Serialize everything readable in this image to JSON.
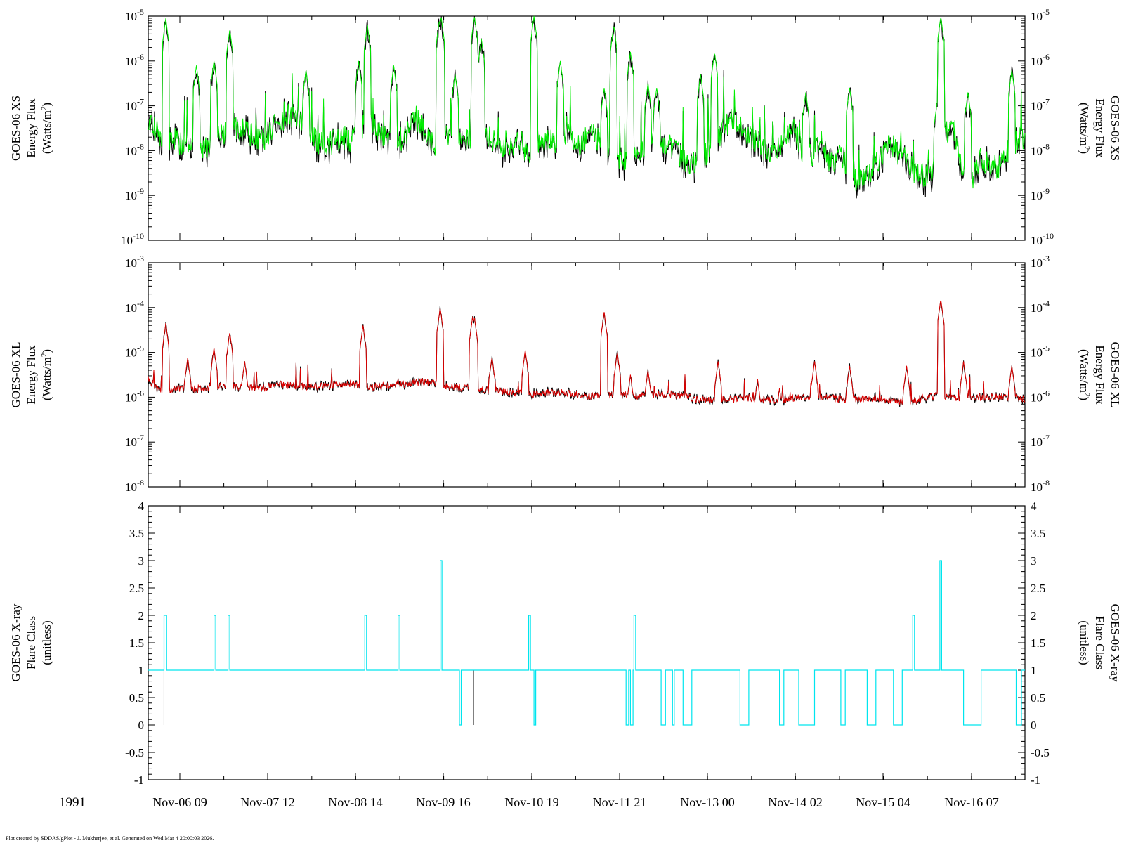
{
  "footer_text": "Plot created by SDDAS/gPlot - J. Mukherjee, et al.  Generated on Wed Mar 4 20:00:03 2026.",
  "year_label": "1991",
  "colors": {
    "xs_primary": "#00ee00",
    "xs_secondary": "#000000",
    "xl_primary": "#dd0000",
    "xl_secondary": "#000000",
    "flare_primary": "#00e5ee",
    "flare_secondary": "#000000"
  },
  "chart_data": [
    {
      "type": "line",
      "panel": "top",
      "ylabel_left": [
        "GOES-06 XS",
        "Energy Flux",
        "(Watts/m2)"
      ],
      "ylabel_right": [
        "GOES-06 XS",
        "Energy Flux",
        "(Watts/m2)"
      ],
      "yscale": "log",
      "ylim": [
        1e-10,
        1e-05
      ],
      "ytick_exponents": [
        -5,
        -6,
        -7,
        -8,
        -9,
        -10
      ],
      "x_range_days": "Nov-05 ~19:30 to Nov-16 ~18:00",
      "series": [
        {
          "color": "#00ee00",
          "baseline_log10": [
            -7.3,
            -7.6,
            -7.8,
            -7.7,
            -7.9,
            -7.8,
            -7.9,
            -7.9,
            -7.7,
            -7.6,
            -7.5,
            -7.6,
            -7.7,
            -7.8,
            -7.5,
            -7.3,
            -7.2,
            -7.3,
            -7.6,
            -7.8,
            -7.9,
            -7.8,
            -7.7,
            -7.8,
            -7.5,
            -7.3,
            -7.6,
            -7.8,
            -7.8,
            -7.7,
            -7.2,
            -7.5,
            -7.8,
            -7.9,
            -7.6,
            -7.7,
            -7.8,
            -7.8,
            -7.5,
            -7.9,
            -7.9,
            -8.0,
            -7.8,
            -8.1,
            -7.9,
            -7.8,
            -7.8,
            -7.6,
            -7.8,
            -7.9,
            -7.6,
            -7.8,
            -8.1,
            -8.3,
            -8.2,
            -8.1,
            -8.0,
            -7.7,
            -7.8,
            -7.9,
            -8.1,
            -8.3,
            -8.2,
            -8.1,
            -8.0,
            -7.5,
            -7.3,
            -7.4,
            -7.7,
            -7.9,
            -8.1,
            -8.0,
            -7.8,
            -7.5,
            -8.1,
            -8.1,
            -7.8,
            -8.3,
            -8.1,
            -8.3,
            -8.7,
            -8.6,
            -8.4,
            -8.0,
            -7.9,
            -8.1,
            -8.3,
            -8.6,
            -8.5,
            -8.3,
            -7.6,
            -7.5,
            -8.5,
            -8.7,
            -8.2,
            -8.3,
            -8.4,
            -8.1,
            -7.8,
            -7.7
          ]
        },
        {
          "color": "#000000",
          "note": "underlying trace"
        }
      ],
      "peaks_log10": [
        [
          0.02,
          -5.05
        ],
        [
          0.055,
          -6.1
        ],
        [
          0.075,
          -6.0
        ],
        [
          0.093,
          -5.3
        ],
        [
          0.18,
          -6.2
        ],
        [
          0.24,
          -6.0
        ],
        [
          0.25,
          -5.2
        ],
        [
          0.28,
          -6.1
        ],
        [
          0.332,
          -5.1
        ],
        [
          0.334,
          -5.0
        ],
        [
          0.372,
          -5.0
        ],
        [
          0.35,
          -6.3
        ],
        [
          0.38,
          -5.5
        ],
        [
          0.44,
          -5.0
        ],
        [
          0.47,
          -6.0
        ],
        [
          0.52,
          -6.7
        ],
        [
          0.52,
          -6.6
        ],
        [
          0.531,
          -5.2
        ],
        [
          0.53,
          -6.3
        ],
        [
          0.55,
          -5.8
        ],
        [
          0.57,
          -6.5
        ],
        [
          0.58,
          -6.6
        ],
        [
          0.63,
          -6.3
        ],
        [
          0.646,
          -5.8
        ],
        [
          0.75,
          -6.7
        ],
        [
          0.8,
          -6.6
        ],
        [
          0.9,
          -6.9
        ],
        [
          0.904,
          -5.0
        ],
        [
          0.935,
          -6.7
        ],
        [
          0.985,
          -6.2
        ]
      ],
      "title": ""
    },
    {
      "type": "line",
      "panel": "middle",
      "ylabel_left": [
        "GOES-06 XL",
        "Energy Flux",
        "(Watts/m2)"
      ],
      "ylabel_right": [
        "GOES-06 XL",
        "Energy Flux",
        "(Watts/m2)"
      ],
      "yscale": "log",
      "ylim": [
        1e-08,
        0.001
      ],
      "ytick_exponents": [
        -3,
        -4,
        -5,
        -6,
        -7,
        -8
      ],
      "series": [
        {
          "color": "#dd0000",
          "baseline_log10": [
            -5.6,
            -5.8,
            -5.85,
            -5.82,
            -5.8,
            -5.82,
            -5.8,
            -5.78,
            -5.75,
            -5.75,
            -5.77,
            -5.78,
            -5.79,
            -5.78,
            -5.75,
            -5.72,
            -5.74,
            -5.76,
            -5.78,
            -5.76,
            -5.75,
            -5.72,
            -5.7,
            -5.72,
            -5.75,
            -5.78,
            -5.76,
            -5.74,
            -5.72,
            -5.7,
            -5.68,
            -5.66,
            -5.68,
            -5.72,
            -5.76,
            -5.78,
            -5.8,
            -5.82,
            -5.84,
            -5.86,
            -5.88,
            -5.9,
            -5.92,
            -5.93,
            -5.92,
            -5.9,
            -5.9,
            -5.9,
            -5.92,
            -5.95,
            -5.97,
            -5.96,
            -5.94,
            -5.93,
            -5.95,
            -5.98,
            -5.97,
            -5.95,
            -5.94,
            -5.94,
            -5.96,
            -6.0,
            -6.04,
            -6.05,
            -6.06,
            -6.05,
            -6.04,
            -6.02,
            -6.02,
            -6.03,
            -6.05,
            -6.06,
            -6.05,
            -6.03,
            -6.0,
            -5.98,
            -6.0,
            -6.02,
            -6.04,
            -6.05,
            -6.04,
            -6.03,
            -6.02,
            -6.05,
            -6.08,
            -6.1,
            -6.1,
            -6.06,
            -6.0,
            -5.98,
            -6.0,
            -6.02,
            -6.04,
            -6.02,
            -6.0,
            -5.98,
            -5.98,
            -6.0,
            -6.02,
            -6.04
          ]
        }
      ],
      "peaks_log10": [
        [
          0.02,
          -4.35
        ],
        [
          0.045,
          -5.12
        ],
        [
          0.075,
          -4.9
        ],
        [
          0.093,
          -4.55
        ],
        [
          0.11,
          -5.2
        ],
        [
          0.245,
          -4.4
        ],
        [
          0.285,
          -5.6
        ],
        [
          0.333,
          -4.0
        ],
        [
          0.37,
          -4.2
        ],
        [
          0.372,
          -4.2
        ],
        [
          0.392,
          -5.1
        ],
        [
          0.43,
          -4.95
        ],
        [
          0.52,
          -4.1
        ],
        [
          0.535,
          -5.0
        ],
        [
          0.55,
          -5.5
        ],
        [
          0.57,
          -5.4
        ],
        [
          0.65,
          -5.2
        ],
        [
          0.695,
          -5.6
        ],
        [
          0.72,
          -5.8
        ],
        [
          0.76,
          -5.2
        ],
        [
          0.8,
          -5.3
        ],
        [
          0.865,
          -5.3
        ],
        [
          0.904,
          -3.8
        ],
        [
          0.93,
          -5.2
        ],
        [
          0.985,
          -5.3
        ]
      ],
      "title": ""
    },
    {
      "type": "line",
      "panel": "bottom",
      "ylabel_left": [
        "GOES-06 X-ray",
        "Flare Class",
        "(unitless)"
      ],
      "ylabel_right": [
        "GOES-06 X-ray",
        "Flare Class",
        "(unitless)"
      ],
      "yscale": "linear",
      "ylim": [
        -1,
        4
      ],
      "yticks": [
        "4",
        "3.5",
        "3",
        "2.5",
        "2",
        "1.5",
        "1",
        "0.5",
        "0",
        "-0.5",
        "-1"
      ],
      "ytick_values": [
        4,
        3.5,
        3,
        2.5,
        2,
        1.5,
        1,
        0.5,
        0,
        -0.5,
        -1
      ],
      "series": [
        {
          "color": "#00e5ee",
          "baseline": 1,
          "pulses_to_2": [
            [
              0.018,
              0.021
            ],
            [
              0.075,
              0.077
            ],
            [
              0.091,
              0.093
            ],
            [
              0.247,
              0.249
            ],
            [
              0.285,
              0.287
            ],
            [
              0.434,
              0.436
            ],
            [
              0.554,
              0.556
            ],
            [
              0.872,
              0.874
            ]
          ],
          "pulses_to_3": [
            [
              0.333,
              0.335
            ],
            [
              0.903,
              0.905
            ]
          ],
          "pulses_to_0": [
            [
              0.355,
              0.357
            ],
            [
              0.44,
              0.442
            ],
            [
              0.545,
              0.548
            ],
            [
              0.55,
              0.553
            ],
            [
              0.585,
              0.59
            ],
            [
              0.598,
              0.6
            ],
            [
              0.61,
              0.62
            ],
            [
              0.675,
              0.685
            ],
            [
              0.72,
              0.725
            ],
            [
              0.742,
              0.76
            ],
            [
              0.79,
              0.795
            ],
            [
              0.82,
              0.83
            ],
            [
              0.85,
              0.86
            ],
            [
              0.93,
              0.95
            ],
            [
              0.99,
              0.996
            ]
          ]
        },
        {
          "color": "#000000",
          "note": "secondary trace dips",
          "dips_to_0": [
            [
              0.018,
              0.019
            ],
            [
              0.371,
              0.372
            ]
          ]
        }
      ],
      "title": ""
    }
  ],
  "x_axis": {
    "tick_labels": [
      "Nov-06 09",
      "Nov-07 12",
      "Nov-08 14",
      "Nov-09 16",
      "Nov-10 19",
      "Nov-11 21",
      "Nov-13 00",
      "Nov-14 02",
      "Nov-15 04",
      "Nov-16 07"
    ]
  }
}
